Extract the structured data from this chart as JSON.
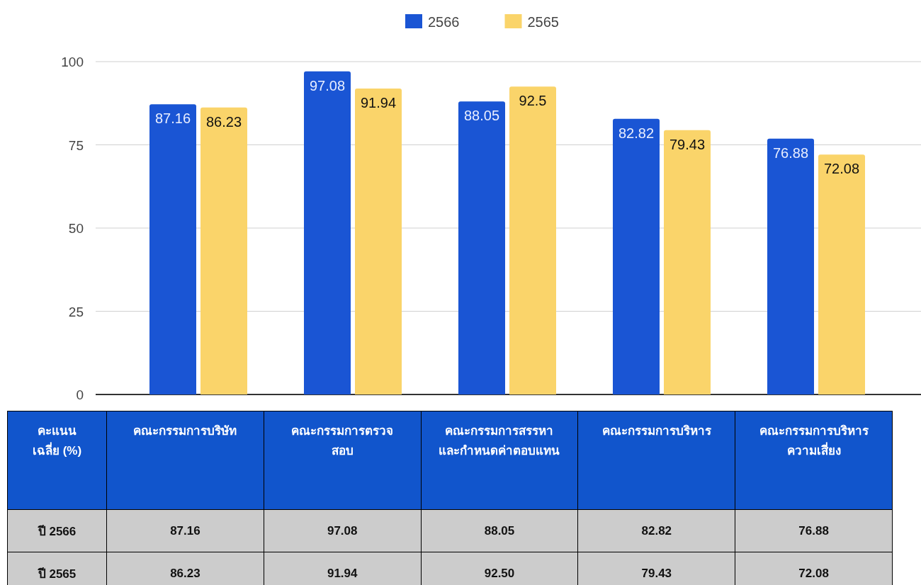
{
  "chart_data": {
    "type": "bar",
    "categories": [
      "คณะกรรมการบริษัท",
      "คณะกรรมการตรวจสอบ",
      "คณะกรรมการสรรหาและกำหนดค่าตอบแทน",
      "คณะกรรมการบริหาร",
      "คณะกรรมการบริหารความเสี่ยง"
    ],
    "series": [
      {
        "name": "2566",
        "color": "#1a55d4",
        "values": [
          87.16,
          97.08,
          88.05,
          82.82,
          76.88
        ],
        "value_labels": [
          "87.16",
          "97.08",
          "88.05",
          "82.82",
          "76.88"
        ]
      },
      {
        "name": "2565",
        "color": "#fad46a",
        "values": [
          86.23,
          91.94,
          92.5,
          79.43,
          72.08
        ],
        "value_labels": [
          "86.23",
          "91.94",
          "92.5",
          "79.43",
          "72.08"
        ]
      }
    ],
    "ylim": [
      0,
      100
    ],
    "yticks": [
      0,
      25,
      50,
      75,
      100
    ],
    "grid": "y",
    "legend": "top",
    "annotations": [
      "คะแนนเฉลี่ย (%)",
      "ปี 2566",
      "87.16",
      "97.08",
      "88.05",
      "82.82",
      "76.88",
      "ปี 2565",
      "86.23",
      "91.94",
      "92.50",
      "79.43",
      "72.08"
    ]
  }
}
